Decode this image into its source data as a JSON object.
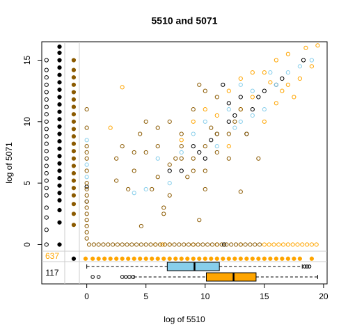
{
  "chart_data": {
    "type": "scatter",
    "title": "5510  and 5071",
    "x_label": "log of 5510",
    "y_label": "log of 5071",
    "xlim": [
      -3.8,
      20.3
    ],
    "ylim": [
      -3.2,
      16.5
    ],
    "xticks": [
      0,
      5,
      10,
      15,
      20
    ],
    "yticks": [
      0,
      5,
      10,
      15
    ],
    "annotations": [
      {
        "text": "637",
        "color": "#ffa500"
      },
      {
        "text": "117",
        "color": "#000000"
      }
    ],
    "series": [
      {
        "color": "#000000",
        "filled": false,
        "x": [
          -3.4,
          -3.4,
          -3.4,
          -3.4,
          -3.4,
          -3.4,
          -3.4,
          -3.4,
          -3.4,
          -3.4,
          -3.4,
          -3.4,
          -3.4,
          -3.4,
          -3.4,
          -3.4,
          -3.4,
          -3.4,
          -3.4,
          -3.4,
          -3.4,
          -3.4,
          -3.4,
          0,
          0,
          11.6,
          10,
          11.5,
          12,
          13,
          14,
          9,
          8,
          15,
          16,
          18.3,
          12.5,
          11,
          7,
          13.5,
          10.5,
          14.5,
          9.5,
          12,
          16.5
        ],
        "y": [
          0,
          1.2,
          2.2,
          3,
          4,
          4.6,
          5.2,
          5.8,
          6.4,
          7,
          7.6,
          8.2,
          8.8,
          9.4,
          10,
          10.6,
          11.2,
          11.8,
          12.4,
          13,
          13.6,
          14.2,
          15,
          4.7,
          3.5,
          0,
          7,
          13,
          10,
          12,
          11,
          8,
          6,
          12.5,
          13,
          15,
          10.5,
          9,
          6,
          9,
          8.5,
          12,
          7.5,
          11.5,
          13.5
        ]
      },
      {
        "color": "#000000",
        "filled": true,
        "x": [
          -2.3,
          -2.3,
          -2.3,
          -2.3,
          -2.3,
          -2.3,
          -2.3,
          -2.3,
          -2.3,
          -2.3,
          -2.3,
          -2.3,
          -2.3,
          -2.3,
          -2.3,
          -2.3,
          -2.3,
          -2.3,
          -2.3,
          -2.3,
          -2.3,
          -2.3,
          -2.3,
          -2.3,
          -2.3,
          -1.1
        ],
        "y": [
          0,
          1.8,
          2.8,
          3.6,
          4.2,
          4.8,
          5.4,
          6,
          6.6,
          7.2,
          7.8,
          8.4,
          9,
          9.6,
          10.2,
          10.8,
          11.4,
          12,
          12.6,
          13.2,
          13.8,
          14.4,
          15,
          15.6,
          16.1,
          -1.15
        ]
      },
      {
        "color": "#8b5a00",
        "filled": true,
        "x": [
          -1.1,
          -1.1,
          -1.1,
          -1.1,
          -1.1,
          -1.1,
          -1.1,
          -1.1,
          -1.1,
          -1.1,
          -1.1,
          -1.1,
          -1.1,
          -1.1,
          -1.1,
          -1.1,
          -1.1,
          -1.1,
          -1.1,
          -1.1,
          -1.1,
          -1.1
        ],
        "y": [
          1.6,
          2.5,
          3.3,
          4,
          4.6,
          5.2,
          5.8,
          6.4,
          7,
          7.6,
          8.2,
          8.8,
          9.4,
          10,
          10.6,
          11.2,
          11.8,
          12.4,
          13,
          13.6,
          14.2,
          15
        ]
      },
      {
        "color": "#87ceeb",
        "filled": false,
        "x": [
          0,
          0,
          0,
          7,
          5,
          9,
          12,
          13,
          14,
          15,
          16,
          17,
          18,
          11,
          10,
          6,
          8,
          13,
          4,
          15.5,
          12.5,
          19,
          14
        ],
        "y": [
          5.5,
          6.5,
          8.5,
          5,
          4.5,
          9,
          11,
          10,
          12.5,
          11,
          13,
          14,
          14.5,
          8,
          10,
          7,
          7.5,
          13,
          4.2,
          14,
          9.5,
          15,
          10.5
        ]
      },
      {
        "color": "#ffa500",
        "filled": false,
        "x": [
          3,
          13,
          15,
          16,
          17,
          18.5,
          19.5,
          17.5,
          16,
          14,
          15,
          12,
          11,
          18,
          14,
          10,
          13,
          16.5,
          9,
          12,
          2,
          8,
          17,
          19,
          15.5,
          5.8,
          6.4,
          7,
          9,
          11,
          13,
          15,
          15.4,
          15.8,
          16.2,
          16.6,
          17,
          17.4,
          17.8,
          18.2,
          18.6,
          19,
          19.4
        ],
        "y": [
          12.8,
          13.5,
          14,
          15,
          15.5,
          16,
          16.2,
          12,
          11.5,
          12,
          10,
          8,
          10.5,
          13.5,
          14,
          11,
          11,
          12.5,
          10,
          12.5,
          9.5,
          8.5,
          13,
          14.5,
          13.2,
          0,
          0,
          0,
          0,
          0,
          0,
          0,
          0,
          0,
          0,
          0,
          0,
          0,
          0,
          0,
          0,
          0,
          0
        ]
      },
      {
        "color": "#ffa500",
        "filled": true,
        "x": [
          -0.1,
          0.5,
          1,
          1.5,
          2,
          2.5,
          3,
          3.5,
          4,
          4.5,
          5,
          5.5,
          6,
          6.5,
          7,
          7.5,
          8,
          8.5,
          9,
          9.5,
          10,
          10.5,
          11,
          11.5,
          12,
          12.5,
          13,
          13.5,
          14,
          14.5,
          15,
          15.5,
          16,
          16.5,
          17,
          17.5,
          18,
          19
        ],
        "y": [
          -1.15,
          -1.15,
          -1.15,
          -1.15,
          -1.15,
          -1.15,
          -1.15,
          -1.15,
          -1.15,
          -1.15,
          -1.15,
          -1.15,
          -1.15,
          -1.15,
          -1.15,
          -1.15,
          -1.15,
          -1.15,
          -1.15,
          -1.15,
          -1.15,
          -1.15,
          -1.15,
          -1.15,
          -1.15,
          -1.15,
          -1.15,
          -1.15,
          -1.15,
          -1.15,
          -1.15,
          -1.15,
          -1.15,
          -1.15,
          -1.15,
          -1.15,
          -1.15,
          -1.15
        ]
      },
      {
        "color": "#8b5a00",
        "filled": false,
        "x": [
          0,
          0,
          0,
          0,
          0,
          0,
          0,
          0,
          0,
          0,
          0,
          0,
          0,
          0,
          0,
          0,
          0.2,
          0.6,
          1,
          1.4,
          1.8,
          2.2,
          2.6,
          3,
          3.4,
          3.8,
          4.2,
          4.6,
          5,
          5.4,
          5.8,
          6.2,
          6.6,
          7,
          7.4,
          7.8,
          8.2,
          8.6,
          9,
          9.4,
          9.8,
          10.2,
          10.6,
          11,
          11.4,
          11.8,
          12.2,
          12.6,
          13,
          13.4,
          13.8,
          14.2,
          14.6,
          3,
          2.5,
          4,
          5,
          6,
          7,
          8,
          9,
          10,
          11,
          12,
          13,
          4.5,
          6,
          7,
          8,
          9,
          10,
          11,
          5.5,
          3.5,
          6.5,
          9.5,
          8.5,
          10.5,
          7.5,
          12,
          13.5,
          4,
          5,
          6,
          8,
          9,
          11,
          7,
          12.5,
          10,
          2.5,
          13,
          4.6,
          9.5,
          10,
          14.5,
          6.5
        ],
        "y": [
          0.5,
          1,
          1.5,
          2,
          2.5,
          3,
          3.5,
          4,
          4.5,
          5,
          6,
          7,
          7.5,
          8,
          9.5,
          11,
          0,
          0,
          0,
          0,
          0,
          0,
          0,
          0,
          0,
          0,
          0,
          0,
          0,
          0,
          0,
          0,
          0,
          0,
          0,
          0,
          0,
          0,
          0,
          0,
          0,
          0,
          0,
          0,
          0,
          0,
          0,
          0,
          0,
          0,
          0,
          0,
          0,
          8,
          7,
          6,
          7.5,
          8,
          6.5,
          9,
          7,
          6,
          7.5,
          9,
          11,
          9,
          5.5,
          10,
          7,
          11,
          8,
          12,
          4.5,
          4.5,
          3,
          13,
          5.5,
          9.5,
          7,
          7,
          9,
          7.5,
          10,
          9.5,
          8,
          6,
          9,
          4,
          10,
          12.5,
          5.2,
          4.3,
          1.5,
          2,
          4.5,
          7,
          2.5
        ]
      }
    ],
    "boxplots": [
      {
        "color": "#87ceeb",
        "stats": [
          0,
          6.8,
          9.1,
          11.2,
          18.2
        ],
        "outliers": [
          18.4,
          18.6,
          18.8
        ]
      },
      {
        "color": "#ffa500",
        "stats": [
          4,
          10.1,
          12.4,
          14.3,
          19.5
        ],
        "outliers": [
          0.5,
          1,
          3,
          3.3,
          3.6,
          3.9
        ]
      }
    ]
  }
}
